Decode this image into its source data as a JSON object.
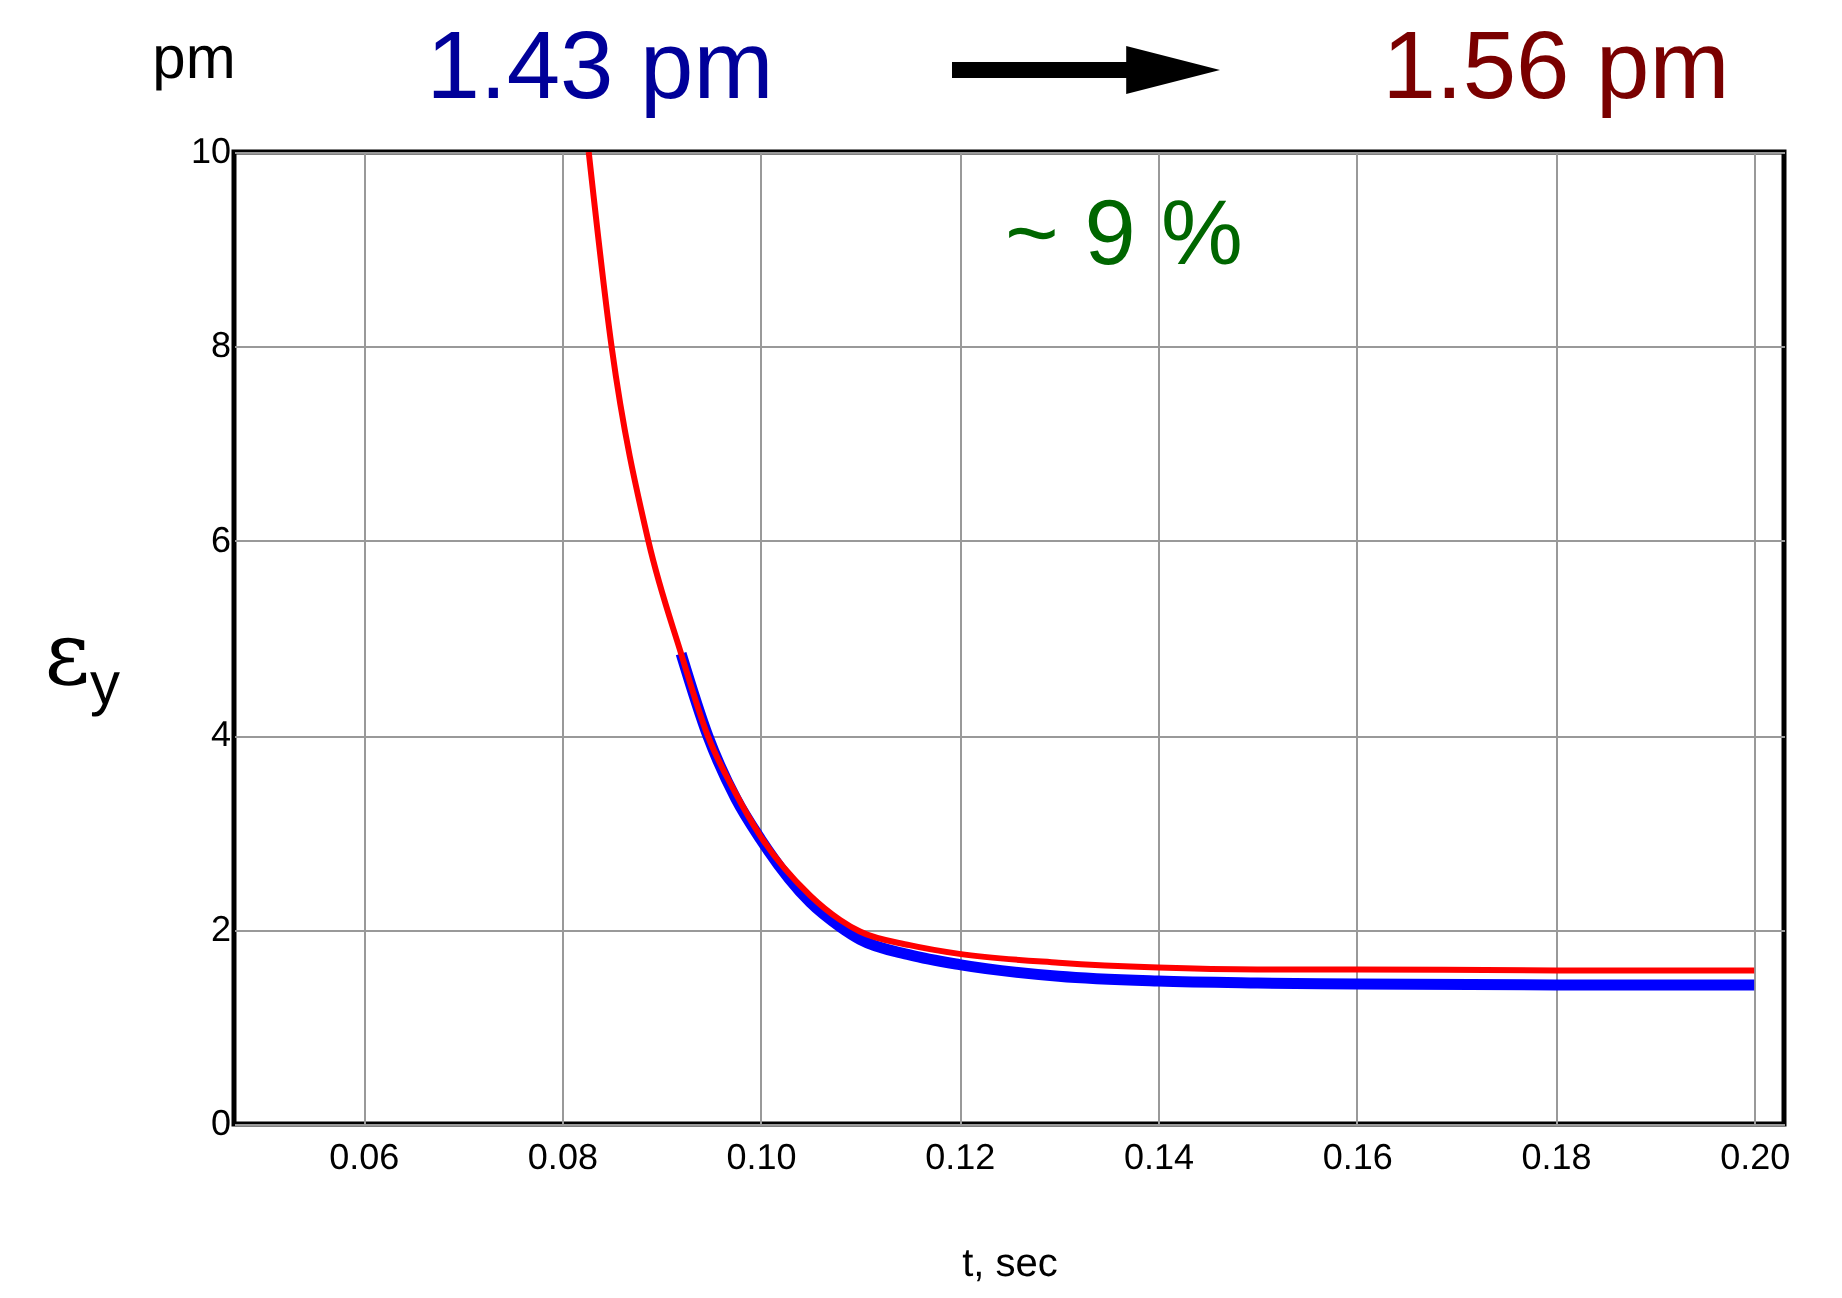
{
  "chart_data": {
    "type": "line",
    "xlabel": "t, sec",
    "ylabel": "ε$_{y}$",
    "annotations": [
      "pm",
      "1.43 pm",
      "1.56 pm",
      "~ 9 %"
    ],
    "series": [
      {
        "color": "#0000ff",
        "x": [
          0.092,
          0.0947,
          0.0975,
          0.1,
          0.105,
          0.108,
          0.11,
          0.115,
          0.12,
          0.13,
          0.14,
          0.15,
          0.16,
          0.18,
          0.2
        ],
        "values": [
          4.84,
          3.99,
          3.35,
          2.93,
          2.28,
          2.03,
          1.9,
          1.74,
          1.64,
          1.52,
          1.47,
          1.45,
          1.44,
          1.43,
          1.43
        ]
      },
      {
        "color": "#ff0000",
        "x": [
          0.0827,
          0.085,
          0.0887,
          0.092,
          0.0947,
          0.0975,
          0.1,
          0.105,
          0.108,
          0.11,
          0.115,
          0.12,
          0.13,
          0.14,
          0.15,
          0.16,
          0.18,
          0.2
        ],
        "values": [
          10,
          8.0,
          6.0,
          4.84,
          3.99,
          3.4,
          2.96,
          2.35,
          2.1,
          1.98,
          1.84,
          1.75,
          1.66,
          1.61,
          1.59,
          1.59,
          1.58,
          1.58
        ]
      }
    ],
    "xlim": [
      0.047,
      0.203
    ],
    "ylim": [
      0,
      10
    ],
    "xticks": [
      {
        "value": 0.06,
        "label": "0.06"
      },
      {
        "value": 0.08,
        "label": "0.08"
      },
      {
        "value": 0.1,
        "label": "0.10"
      },
      {
        "value": 0.12,
        "label": "0.12"
      },
      {
        "value": 0.14,
        "label": "0.14"
      },
      {
        "value": 0.16,
        "label": "0.16"
      },
      {
        "value": 0.18,
        "label": "0.18"
      },
      {
        "value": 0.2,
        "label": "0.20"
      }
    ],
    "yticks": [
      0,
      2,
      4,
      6,
      8,
      10
    ],
    "grid": true
  }
}
